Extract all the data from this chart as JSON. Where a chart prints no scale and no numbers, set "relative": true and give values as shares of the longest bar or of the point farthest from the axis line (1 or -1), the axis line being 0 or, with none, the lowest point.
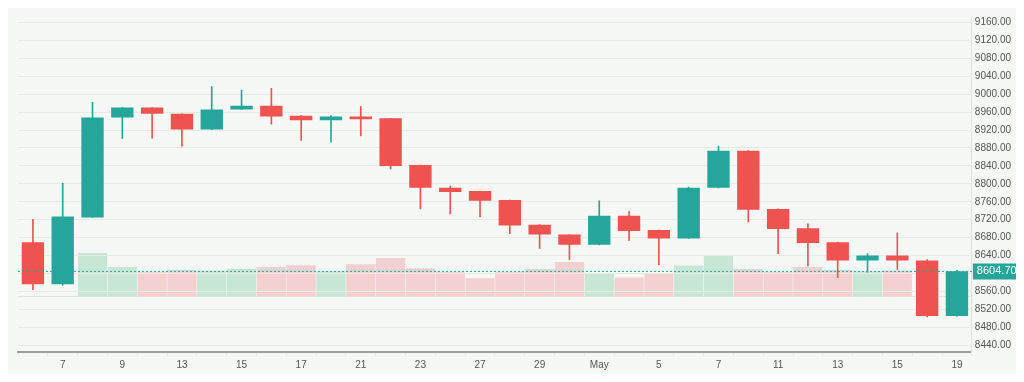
{
  "chart_data": [
    {
      "type": "candlestick",
      "categories": [
        null,
        "7",
        null,
        "9",
        null,
        "13",
        null,
        "15",
        null,
        "17",
        null,
        "21",
        null,
        "23",
        null,
        "27",
        null,
        "29",
        null,
        "May",
        null,
        "5",
        null,
        "7",
        null,
        "11",
        null,
        "13",
        null,
        "15",
        null,
        "19"
      ],
      "ohlc": [
        [
          8670,
          8721,
          8564,
          8576
        ],
        [
          8576,
          8801,
          8574,
          8727
        ],
        [
          8725,
          8982,
          8725,
          8948
        ],
        [
          8948,
          8970,
          8901,
          8970
        ],
        [
          8970,
          8970,
          8902,
          8956
        ],
        [
          8956,
          8956,
          8884,
          8921
        ],
        [
          8921,
          9017,
          8921,
          8966
        ],
        [
          8966,
          9009,
          8966,
          8974
        ],
        [
          8974,
          9013,
          8933,
          8950
        ],
        [
          8952,
          8952,
          8897,
          8942
        ],
        [
          8942,
          8952,
          8893,
          8950
        ],
        [
          8950,
          8972,
          8907,
          8944
        ],
        [
          8946,
          8946,
          8833,
          8840
        ],
        [
          8842,
          8842,
          8744,
          8791
        ],
        [
          8791,
          8795,
          8733,
          8782
        ],
        [
          8784,
          8784,
          8727,
          8762
        ],
        [
          8764,
          8764,
          8689,
          8707
        ],
        [
          8709,
          8709,
          8656,
          8687
        ],
        [
          8687,
          8687,
          8631,
          8664
        ],
        [
          8664,
          8762,
          8664,
          8729
        ],
        [
          8729,
          8738,
          8674,
          8695
        ],
        [
          8697,
          8697,
          8619,
          8678
        ],
        [
          8678,
          8793,
          8678,
          8791
        ],
        [
          8791,
          8884,
          8791,
          8874
        ],
        [
          8874,
          8874,
          8715,
          8742
        ],
        [
          8744,
          8744,
          8644,
          8699
        ],
        [
          8701,
          8711,
          8617,
          8668
        ],
        [
          8670,
          8670,
          8591,
          8629
        ],
        [
          8629,
          8644,
          8603,
          8640
        ],
        [
          8640,
          8691,
          8609,
          8629
        ],
        [
          8629,
          8631,
          8503,
          8505
        ],
        [
          8505,
          8607,
          8505,
          8605
        ]
      ],
      "colors": [
        "#ef5350",
        "#26a69a",
        "#26a69a",
        "#26a69a",
        "#ef5350",
        "#ef5350",
        "#26a69a",
        "#26a69a",
        "#ef5350",
        "#ef5350",
        "#26a69a",
        "#ef5350",
        "#ef5350",
        "#ef5350",
        "#ef5350",
        "#ef5350",
        "#ef5350",
        "#ef5350",
        "#ef5350",
        "#26a69a",
        "#ef5350",
        "#ef5350",
        "#26a69a",
        "#26a69a",
        "#ef5350",
        "#ef5350",
        "#ef5350",
        "#ef5350",
        "#26a69a",
        "#ef5350",
        "#ef5350",
        "#26a69a"
      ],
      "ylim": [
        8425,
        9172
      ],
      "yticks": [
        {
          "value": 8440,
          "label": "8440.00"
        },
        {
          "value": 8480,
          "label": "8480.00"
        },
        {
          "value": 8520,
          "label": "8520.00"
        },
        {
          "value": 8560,
          "label": "8560.00"
        },
        {
          "value": 8600,
          "label": null
        },
        {
          "value": 8640,
          "label": "8640.00"
        },
        {
          "value": 8680,
          "label": "8680.00"
        },
        {
          "value": 8720,
          "label": "8720.00"
        },
        {
          "value": 8760,
          "label": "8760.00"
        },
        {
          "value": 8800,
          "label": "8800.00"
        },
        {
          "value": 8840,
          "label": "8840.00"
        },
        {
          "value": 8880,
          "label": "8880.00"
        },
        {
          "value": 8920,
          "label": "8920.00"
        },
        {
          "value": 8960,
          "label": "8960.00"
        },
        {
          "value": 9000,
          "label": "9000.00"
        },
        {
          "value": 9040,
          "label": "9040.00"
        },
        {
          "value": 9080,
          "label": "9080.00"
        },
        {
          "value": 9120,
          "label": "9120.00"
        },
        {
          "value": 9160,
          "label": "9160.00"
        }
      ],
      "ref_lines": [
        {
          "axis": "y",
          "value": 8604.7,
          "label": "8604.70",
          "color": "#26a69a",
          "line_style": "dotted"
        }
      ],
      "grid": "y",
      "legend": false
    },
    {
      "type": "bar",
      "relative": true,
      "categories": [
        null,
        null,
        null,
        null,
        null,
        null,
        null,
        null,
        null,
        null,
        null,
        null,
        null,
        null,
        null,
        null,
        null,
        null,
        null,
        null,
        null,
        null,
        null,
        null,
        null,
        null,
        null,
        null,
        null,
        null,
        null,
        null
      ],
      "values": [
        null,
        null,
        1,
        0.68,
        0.57,
        0.61,
        0.6,
        0.64,
        0.68,
        0.72,
        0.58,
        0.74,
        0.88,
        0.65,
        0.57,
        0.42,
        0.57,
        0.63,
        0.79,
        0.54,
        0.44,
        0.53,
        0.71,
        0.93,
        0.63,
        0.57,
        0.68,
        0.61,
        0.58,
        0.6,
        null,
        null
      ],
      "colors": [
        "#c8e6d4",
        "#c8e6d4",
        "#c8e6d4",
        "#c8e6d4",
        "#f5d0d0",
        "#f5d0d0",
        "#c8e6d4",
        "#c8e6d4",
        "#f5d0d0",
        "#f5d0d0",
        "#c8e6d4",
        "#f5d0d0",
        "#f5d0d0",
        "#f5d0d0",
        "#f5d0d0",
        "#f5d0d0",
        "#f5d0d0",
        "#f5d0d0",
        "#f5d0d0",
        "#c8e6d4",
        "#f5d0d0",
        "#f5d0d0",
        "#c8e6d4",
        "#c8e6d4",
        "#f5d0d0",
        "#f5d0d0",
        "#f5d0d0",
        "#f5d0d0",
        "#c8e6d4",
        "#f5d0d0",
        "#f5d0d0",
        "#c8e6d4"
      ],
      "legend": false
    }
  ]
}
